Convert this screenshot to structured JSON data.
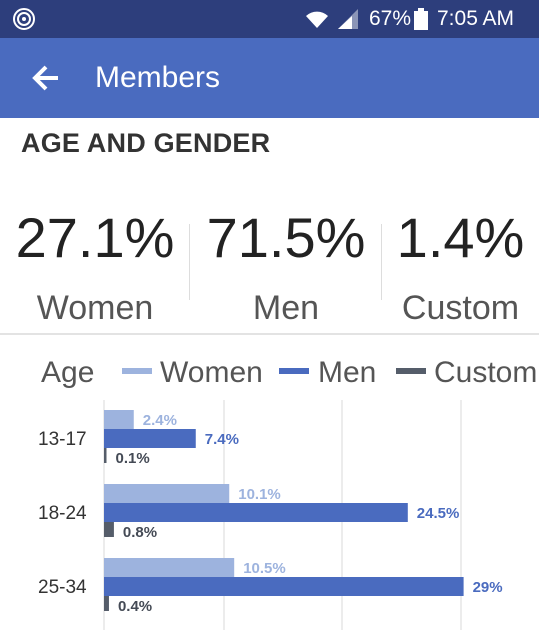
{
  "status_bar": {
    "battery": "67%",
    "time": "7:05 AM",
    "icons": [
      "app-ring-icon",
      "wifi-icon",
      "signal-icon",
      "battery-icon"
    ]
  },
  "app_bar": {
    "back_icon": "arrow-left-icon",
    "title": "Members"
  },
  "section": {
    "title": "AGE AND GENDER"
  },
  "stats": [
    {
      "value": "27.1%",
      "label": "Women"
    },
    {
      "value": "71.5%",
      "label": "Men"
    },
    {
      "value": "1.4%",
      "label": "Custom"
    }
  ],
  "legend": {
    "axis_label": "Age",
    "items": [
      "Women",
      "Men",
      "Custom"
    ]
  },
  "colors": {
    "status_bar": "#2d3e7c",
    "app_bar": "#4a6bbf",
    "women": "#9db3de",
    "men": "#4a6bbf",
    "custom": "#555d6a"
  },
  "chart_data": {
    "type": "bar",
    "orientation": "horizontal",
    "categories": [
      "13-17",
      "18-24",
      "25-34"
    ],
    "series": [
      {
        "name": "Women",
        "values": [
          2.4,
          10.1,
          10.5
        ],
        "labels": [
          "2.4%",
          "10.1%",
          "10.5%"
        ]
      },
      {
        "name": "Men",
        "values": [
          7.4,
          24.5,
          29
        ],
        "labels": [
          "7.4%",
          "24.5%",
          "29%"
        ]
      },
      {
        "name": "Custom",
        "values": [
          0.1,
          0.8,
          0.4
        ],
        "labels": [
          "0.1%",
          "0.8%",
          "0.4%"
        ]
      }
    ],
    "xlim": [
      0,
      45
    ],
    "grid": true
  }
}
